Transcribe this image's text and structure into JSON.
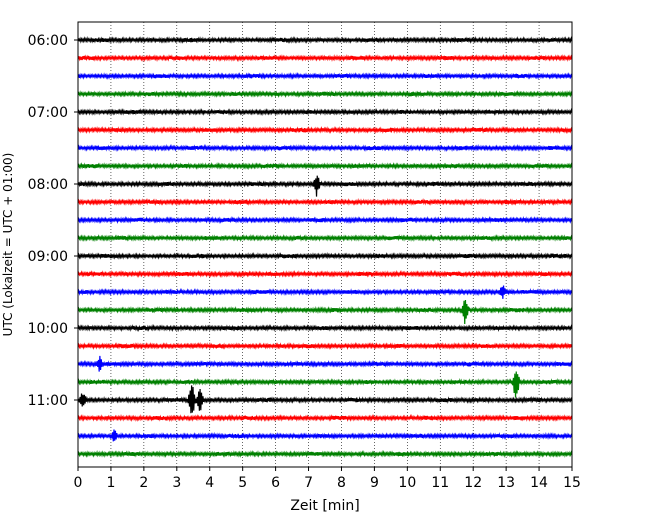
{
  "chart_data": {
    "type": "line",
    "title": "",
    "xlabel": "Zeit  [min]",
    "ylabel": "UTC (Lokalzeit = UTC + 01:00)",
    "xlim": [
      0,
      15
    ],
    "x_ticks": [
      "0",
      "1",
      "2",
      "3",
      "4",
      "5",
      "6",
      "7",
      "8",
      "9",
      "10",
      "11",
      "12",
      "13",
      "14",
      "15"
    ],
    "y_ticks": [
      "06:00",
      "07:00",
      "08:00",
      "09:00",
      "10:00",
      "11:00"
    ],
    "row_interval_minutes": 15,
    "row_count": 24,
    "row_colors": [
      "#000000",
      "#ff0000",
      "#0000ff",
      "#008000"
    ],
    "grid": "vertical-dotted",
    "events": [
      {
        "row": 8,
        "x": 7.25,
        "amplitude": 1.0
      },
      {
        "row": 15,
        "x": 11.75,
        "amplitude": 1.3
      },
      {
        "row": 19,
        "x": 13.3,
        "amplitude": 1.5
      },
      {
        "row": 20,
        "x": 3.45,
        "amplitude": 1.6
      },
      {
        "row": 20,
        "x": 3.7,
        "amplitude": 1.0
      },
      {
        "row": 20,
        "x": 0.15,
        "amplitude": 0.6
      },
      {
        "row": 18,
        "x": 0.65,
        "amplitude": 0.6
      },
      {
        "row": 22,
        "x": 1.1,
        "amplitude": 0.5
      },
      {
        "row": 14,
        "x": 12.9,
        "amplitude": 0.5
      }
    ]
  }
}
